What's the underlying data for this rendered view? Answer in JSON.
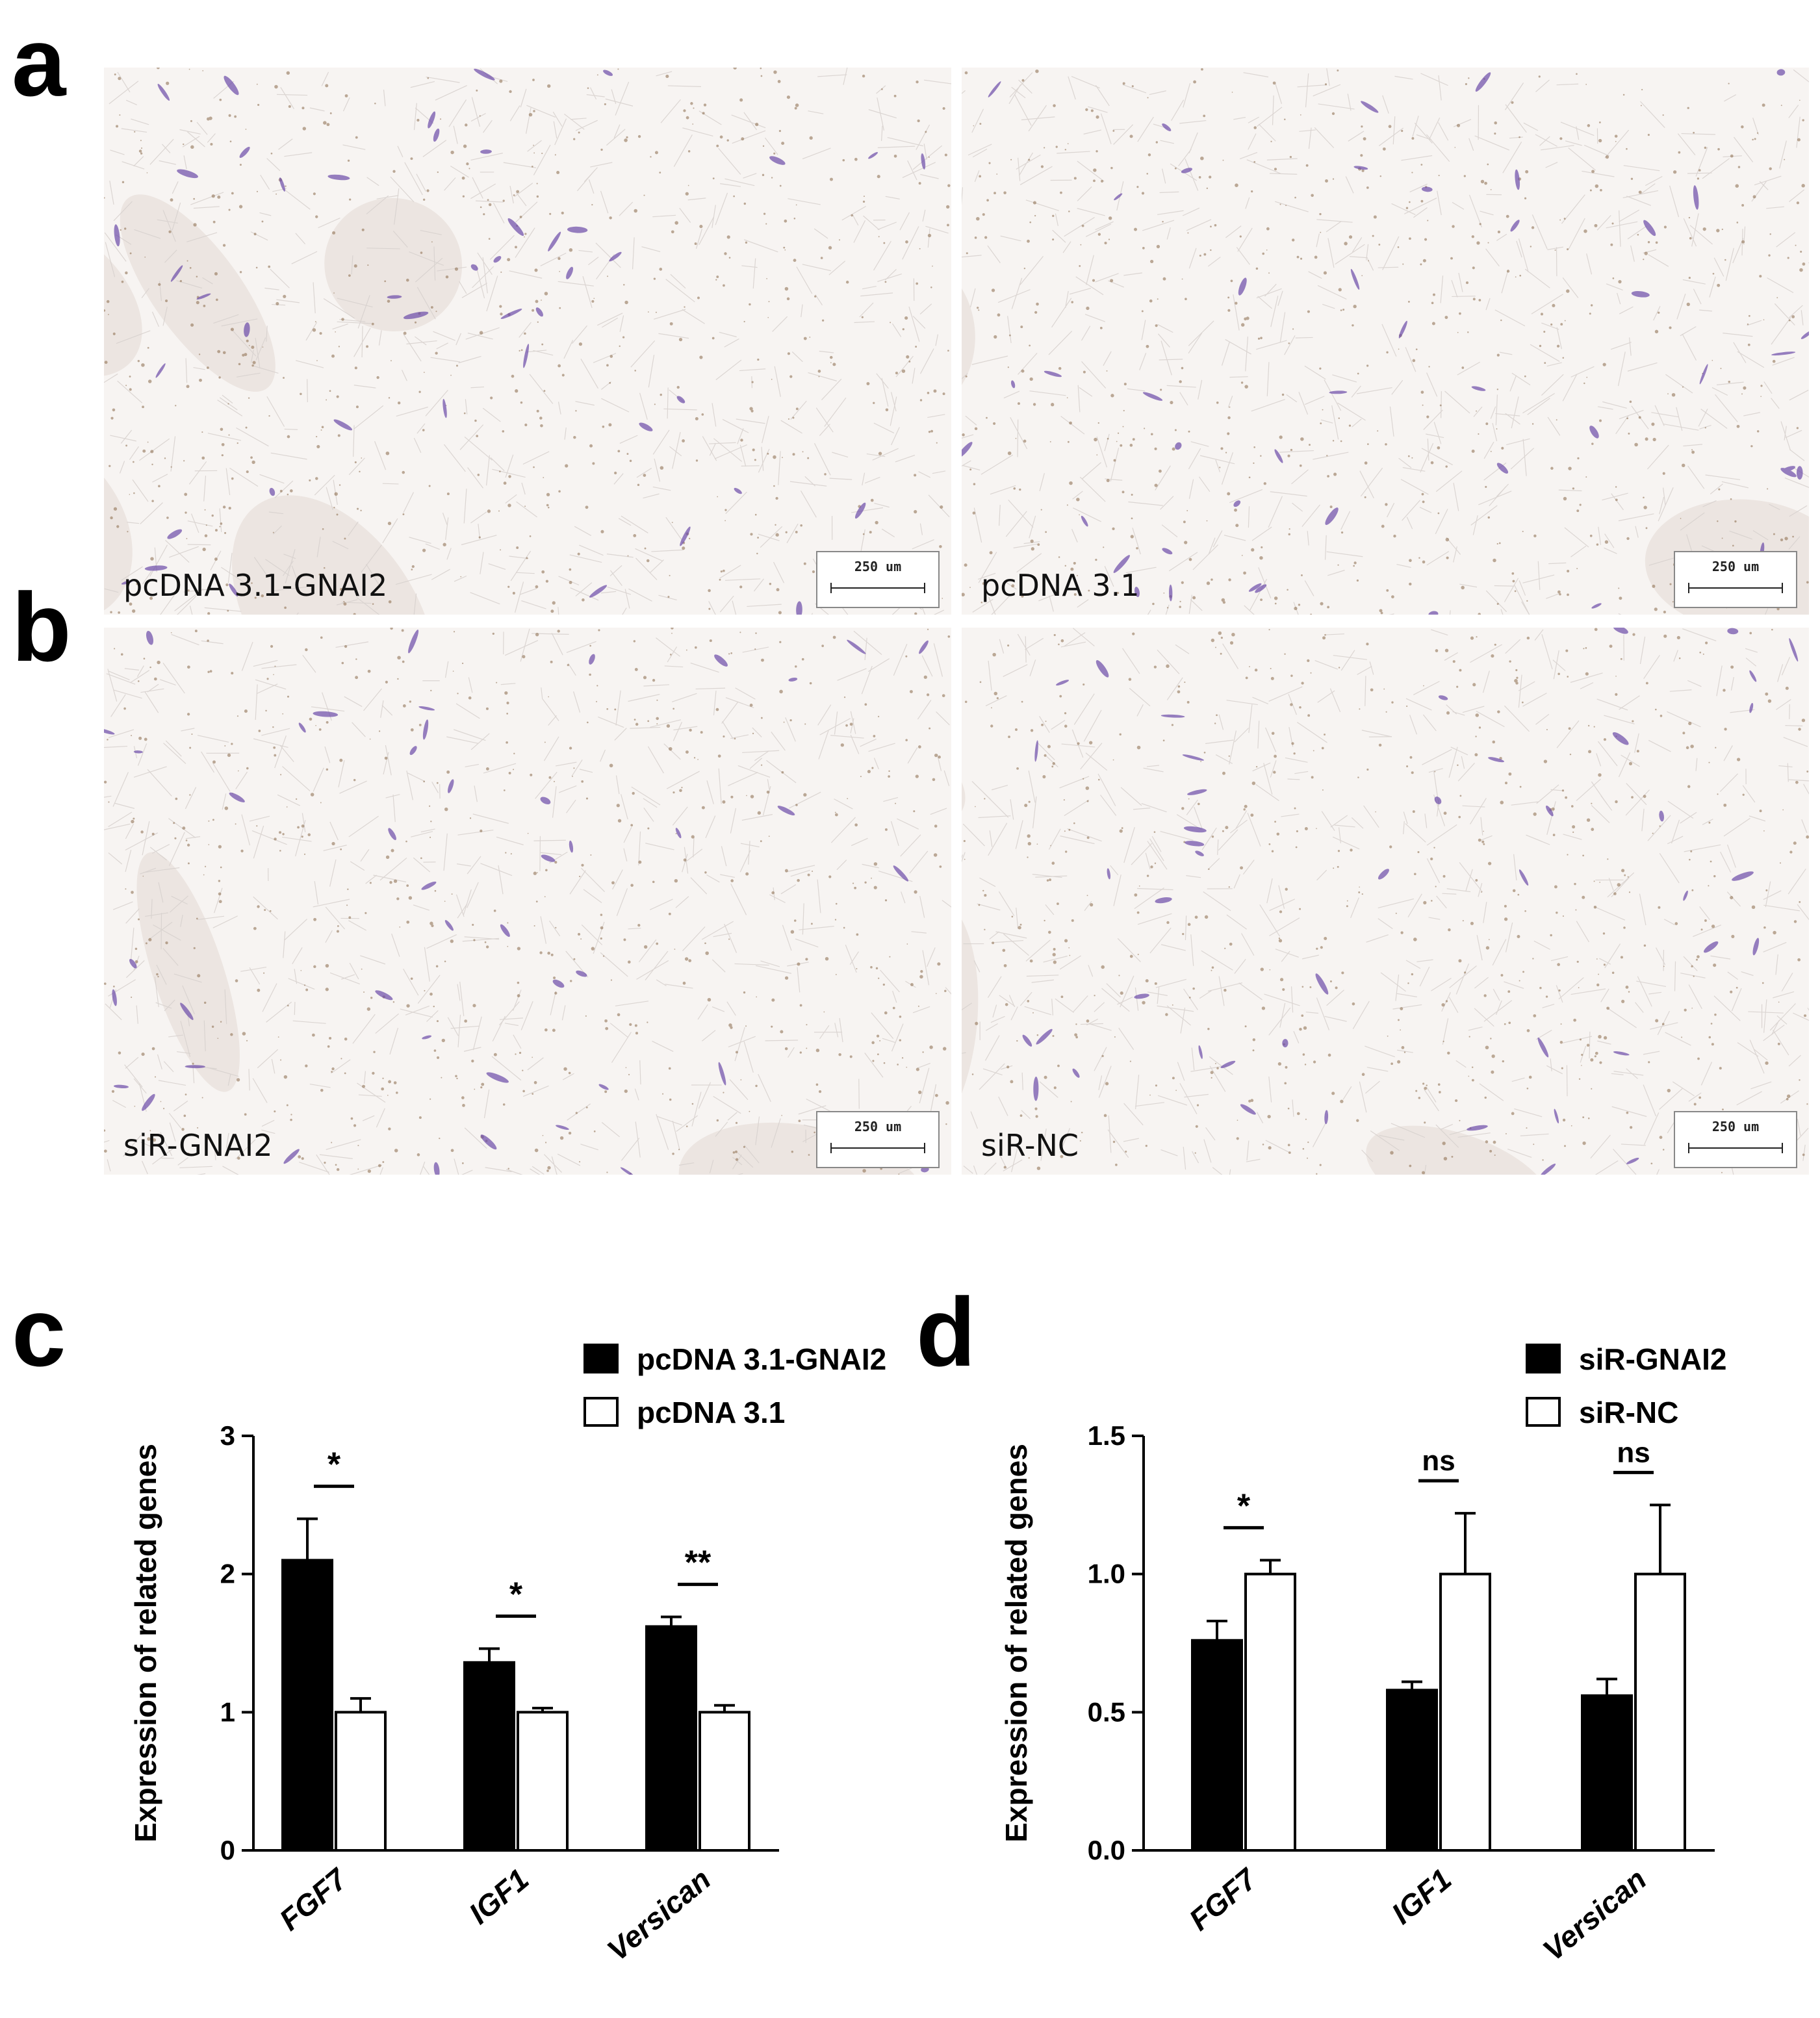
{
  "panels": {
    "a": "a",
    "b": "b",
    "c": "c",
    "d": "d"
  },
  "images": [
    {
      "label": "pcDNA 3.1-GNAI2",
      "scale": "250 um"
    },
    {
      "label": "pcDNA 3.1",
      "scale": "250 um"
    },
    {
      "label": "siR-GNAI2",
      "scale": "250 um"
    },
    {
      "label": "siR-NC",
      "scale": "250 um"
    }
  ],
  "colors": {
    "treated_fill": "#000000",
    "control_fill": "#ffffff",
    "stain_purple": "#6a4aa8",
    "stain_brown": "#8a6a4a"
  },
  "chart_data": [
    {
      "type": "bar",
      "ylabel": "Expression of related genes",
      "categories": [
        "FGF7",
        "IGF1",
        "Versican"
      ],
      "ylim": [
        0,
        3
      ],
      "yticks": [
        "0",
        "1",
        "2",
        "3"
      ],
      "legend_position": "top-right",
      "series": [
        {
          "name": "pcDNA 3.1-GNAI2",
          "values": [
            2.1,
            1.36,
            1.62
          ],
          "errors": [
            0.3,
            0.1,
            0.07
          ]
        },
        {
          "name": "pcDNA 3.1",
          "values": [
            1.0,
            1.0,
            1.0
          ],
          "errors": [
            0.1,
            0.03,
            0.05
          ]
        }
      ],
      "significance": [
        "*",
        "*",
        "**"
      ]
    },
    {
      "type": "bar",
      "ylabel": "Expression of related genes",
      "categories": [
        "FGF7",
        "IGF1",
        "Versican"
      ],
      "ylim": [
        0,
        1.5
      ],
      "yticks": [
        "0.0",
        "0.5",
        "1.0",
        "1.5"
      ],
      "legend_position": "top-right",
      "series": [
        {
          "name": "siR-GNAI2",
          "values": [
            0.76,
            0.58,
            0.56
          ],
          "errors": [
            0.07,
            0.03,
            0.06
          ]
        },
        {
          "name": "siR-NC",
          "values": [
            1.0,
            1.0,
            1.0
          ],
          "errors": [
            0.05,
            0.22,
            0.25
          ]
        }
      ],
      "significance": [
        "*",
        "ns",
        "ns"
      ]
    }
  ]
}
